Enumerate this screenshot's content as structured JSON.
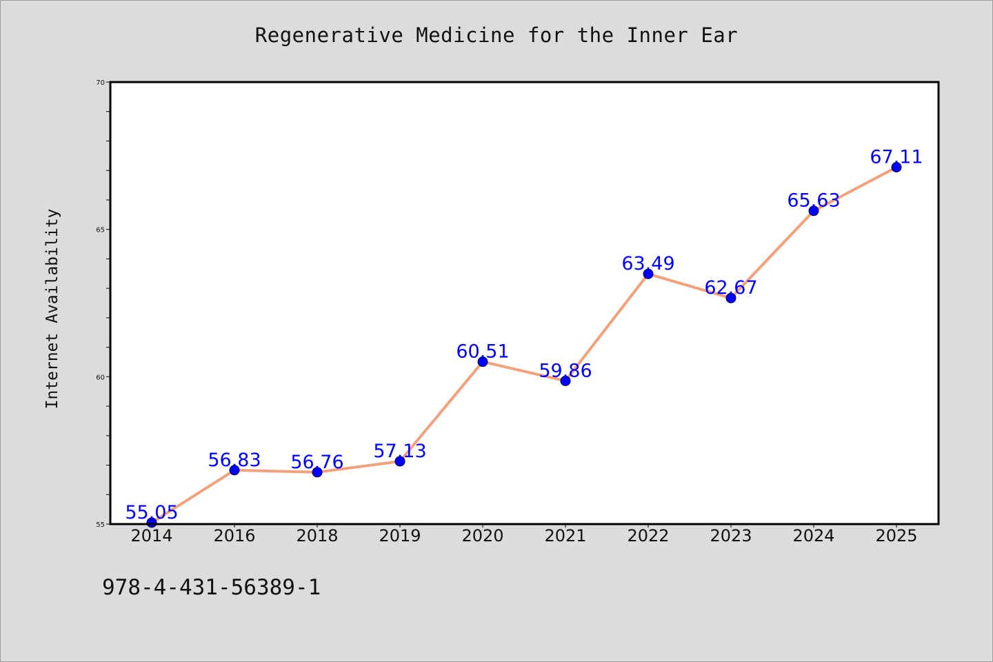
{
  "colors": {
    "background": "#dcdcdc",
    "plot_background": "#ffffff",
    "line": "#f4a07a",
    "marker": "#0000ff",
    "data_label": "#0000ff"
  },
  "footer": {
    "code": "978-4-431-56389-1"
  },
  "chart_data": {
    "type": "line",
    "title": "Regenerative Medicine for the Inner Ear",
    "xlabel": "",
    "ylabel": "Internet Availability",
    "categories": [
      "2014",
      "2016",
      "2018",
      "2019",
      "2020",
      "2021",
      "2022",
      "2023",
      "2024",
      "2025"
    ],
    "series": [
      {
        "values": [
          55.05,
          56.83,
          56.76,
          57.13,
          60.51,
          59.86,
          63.49,
          62.67,
          65.63,
          67.11
        ]
      }
    ],
    "data_labels": [
      "55.05",
      "56.83",
      "56.76",
      "57.13",
      "60.51",
      "59.86",
      "63.49",
      "62.67",
      "65.63",
      "67.11"
    ],
    "ylim": [
      55,
      70
    ],
    "yticks": [
      55,
      60,
      65,
      70
    ],
    "ytick_labels": [
      "55",
      "60",
      "65",
      "70"
    ],
    "minor_ytick_step": 1,
    "grid": false,
    "legend": "none"
  }
}
